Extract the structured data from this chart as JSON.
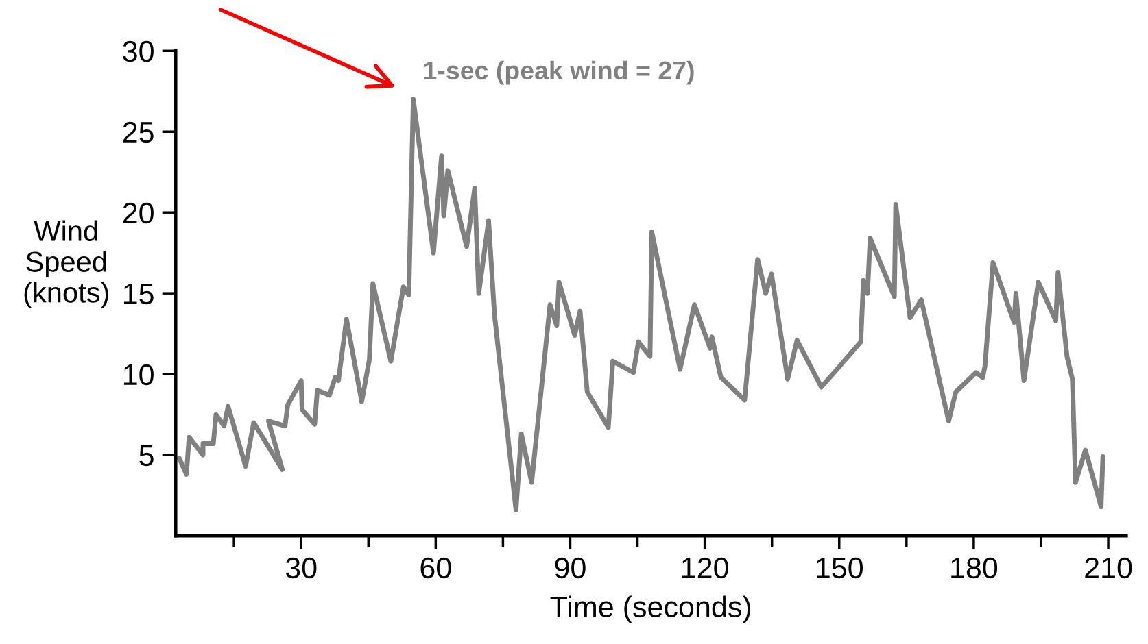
{
  "chart_data": {
    "type": "line",
    "xlabel": "Time (seconds)",
    "ylabel": "Wind\nSpeed\n(knots)",
    "xlim": [
      2,
      214
    ],
    "ylim": [
      0,
      30
    ],
    "xticks": [
      {
        "value": 15,
        "label": null
      },
      30,
      {
        "value": 45,
        "label": null
      },
      60,
      {
        "value": 75,
        "label": null
      },
      90,
      {
        "value": 105,
        "label": null
      },
      120,
      {
        "value": 135,
        "label": null
      },
      150,
      {
        "value": 165,
        "label": null
      },
      180,
      {
        "value": 195,
        "label": null
      },
      210
    ],
    "yticks": [
      5,
      10,
      15,
      20,
      25,
      30
    ],
    "grid": false,
    "legend": false,
    "marker": "none",
    "line_style": "solid",
    "series": [
      {
        "name": "1-sec (peak wind = 27)",
        "color": "#808080",
        "x": [
          2.8,
          4.4,
          5.0,
          8.1,
          8.1,
          10.4,
          11.0,
          12.8,
          13.7,
          17.6,
          19.4,
          25.8,
          22.7,
          26.4,
          27.0,
          30.0,
          30.2,
          33.0,
          33.6,
          36.3,
          37.6,
          38.3,
          40.1,
          43.5,
          45.2,
          46.0,
          50.0,
          52.8,
          54.0,
          55.0,
          59.5,
          61.3,
          61.8,
          62.7,
          66.9,
          68.7,
          69.6,
          71.8,
          73.1,
          77.9,
          79.1,
          81.4,
          85.5,
          87.0,
          87.5,
          91.0,
          92.2,
          93.8,
          98.5,
          99.5,
          104.1,
          105.2,
          107.8,
          108.2,
          114.5,
          117.7,
          121.2,
          121.6,
          123.6,
          128.9,
          131.8,
          133.6,
          134.9,
          138.5,
          140.6,
          146.0,
          149.5,
          154.8,
          155.4,
          156.3,
          156.9,
          162.3,
          162.6,
          165.8,
          168.3,
          174.4,
          176.0,
          180.5,
          182.0,
          182.5,
          184.3,
          189.0,
          189.4,
          191.2,
          194.4,
          198.3,
          198.8,
          200.8,
          202.0,
          202.7,
          204.9,
          208.4,
          208.8
        ],
        "values": [
          4.8,
          3.8,
          6.1,
          5.0,
          5.7,
          5.7,
          7.5,
          6.8,
          8.0,
          4.3,
          7.0,
          4.1,
          7.1,
          6.8,
          8.1,
          9.6,
          7.8,
          6.9,
          9.0,
          8.7,
          9.8,
          9.6,
          13.4,
          8.3,
          10.9,
          15.6,
          10.8,
          15.4,
          14.9,
          27,
          17.5,
          23.5,
          19.8,
          22.6,
          17.9,
          21.5,
          15.0,
          19.5,
          13.7,
          1.6,
          6.3,
          3.3,
          14.3,
          13.0,
          15.7,
          12.4,
          13.9,
          8.9,
          6.7,
          10.8,
          10.1,
          12.0,
          11.1,
          18.8,
          10.3,
          14.3,
          11.6,
          12.3,
          9.8,
          8.4,
          17.1,
          15.0,
          16.2,
          9.7,
          12.1,
          9.2,
          10.3,
          12.0,
          15.8,
          15.0,
          18.4,
          14.8,
          20.5,
          13.5,
          14.6,
          7.1,
          8.9,
          10.1,
          9.8,
          10.5,
          16.9,
          13.2,
          15.0,
          9.6,
          15.7,
          13.3,
          16.3,
          11.1,
          9.7,
          3.3,
          5.3,
          1.8,
          4.9
        ]
      }
    ]
  }
}
